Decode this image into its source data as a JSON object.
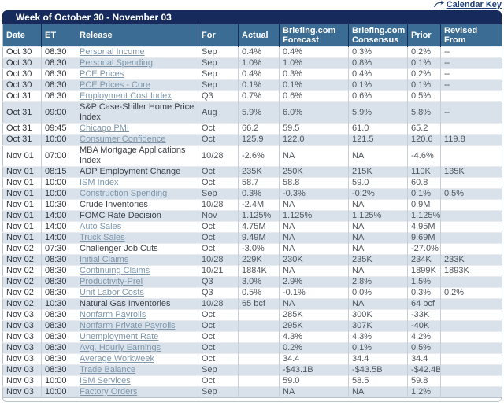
{
  "calendar_key": {
    "label": "Calendar Key",
    "icon": "curved-arrow-key-icon"
  },
  "title": "Week of October 30 - November 03",
  "colors": {
    "title_bar": "#172a5c",
    "header_bg": "#3b6c94",
    "alt_row": "#d9e2eb",
    "link": "#7d96ab",
    "border": "#b6c2cc"
  },
  "columns": [
    "Date",
    "ET",
    "Release",
    "For",
    "Actual",
    "Briefing.com Forecast",
    "Briefing.com Consensus",
    "Prior",
    "Revised From"
  ],
  "rows": [
    {
      "date": "Oct 30",
      "et": "08:30",
      "release": "Personal Income",
      "is_link": true,
      "for": "Sep",
      "actual": "0.4%",
      "forecast": "0.4%",
      "consensus": "0.3%",
      "prior": "0.2%",
      "revised": "--"
    },
    {
      "date": "Oct 30",
      "et": "08:30",
      "release": "Personal Spending",
      "is_link": true,
      "for": "Sep",
      "actual": "1.0%",
      "forecast": "1.0%",
      "consensus": "0.8%",
      "prior": "0.1%",
      "revised": "--"
    },
    {
      "date": "Oct 30",
      "et": "08:30",
      "release": "PCE Prices",
      "is_link": true,
      "for": "Sep",
      "actual": "0.4%",
      "forecast": "0.3%",
      "consensus": "0.4%",
      "prior": "0.2%",
      "revised": "--"
    },
    {
      "date": "Oct 30",
      "et": "08:30",
      "release": "PCE Prices - Core",
      "is_link": true,
      "for": "Sep",
      "actual": "0.1%",
      "forecast": "0.1%",
      "consensus": "0.1%",
      "prior": "0.1%",
      "revised": "--"
    },
    {
      "date": "Oct 31",
      "et": "08:30",
      "release": "Employment Cost Index",
      "is_link": true,
      "for": "Q3",
      "actual": "0.7%",
      "forecast": "0.6%",
      "consensus": "0.6%",
      "prior": "0.5%",
      "revised": ""
    },
    {
      "date": "Oct 31",
      "et": "09:00",
      "release": "S&P Case-Shiller Home Price Index",
      "is_link": false,
      "for": "Aug",
      "actual": "5.9%",
      "forecast": "6.0%",
      "consensus": "5.9%",
      "prior": "5.8%",
      "revised": "--"
    },
    {
      "date": "Oct 31",
      "et": "09:45",
      "release": "Chicago PMI",
      "is_link": true,
      "for": "Oct",
      "actual": "66.2",
      "forecast": "59.5",
      "consensus": "61.0",
      "prior": "65.2",
      "revised": ""
    },
    {
      "date": "Oct 31",
      "et": "10:00",
      "release": "Consumer Confidence",
      "is_link": true,
      "for": "Oct",
      "actual": "125.9",
      "forecast": "122.0",
      "consensus": "121.5",
      "prior": "120.6",
      "revised": "119.8"
    },
    {
      "date": "Nov 01",
      "et": "07:00",
      "release": "MBA Mortgage Applications Index",
      "is_link": false,
      "for": "10/28",
      "actual": "-2.6%",
      "forecast": "NA",
      "consensus": "NA",
      "prior": "-4.6%",
      "revised": ""
    },
    {
      "date": "Nov 01",
      "et": "08:15",
      "release": "ADP Employment Change",
      "is_link": false,
      "for": "Oct",
      "actual": "235K",
      "forecast": "250K",
      "consensus": "215K",
      "prior": "110K",
      "revised": "135K"
    },
    {
      "date": "Nov 01",
      "et": "10:00",
      "release": "ISM Index",
      "is_link": true,
      "for": "Oct",
      "actual": "58.7",
      "forecast": "58.8",
      "consensus": "59.0",
      "prior": "60.8",
      "revised": ""
    },
    {
      "date": "Nov 01",
      "et": "10:00",
      "release": "Construction Spending",
      "is_link": true,
      "for": "Sep",
      "actual": "0.3%",
      "forecast": "-0.3%",
      "consensus": "-0.2%",
      "prior": "0.1%",
      "revised": "0.5%"
    },
    {
      "date": "Nov 01",
      "et": "10:30",
      "release": "Crude Inventories",
      "is_link": false,
      "for": "10/28",
      "actual": "-2.4M",
      "forecast": "NA",
      "consensus": "NA",
      "prior": "0.9M",
      "revised": ""
    },
    {
      "date": "Nov 01",
      "et": "14:00",
      "release": "FOMC Rate Decision",
      "is_link": false,
      "for": "Nov",
      "actual": "1.125%",
      "forecast": "1.125%",
      "consensus": "1.125%",
      "prior": "1.125%",
      "revised": ""
    },
    {
      "date": "Nov 01",
      "et": "14:00",
      "release": "Auto Sales",
      "is_link": true,
      "for": "Oct",
      "actual": "4.75M",
      "forecast": "NA",
      "consensus": "NA",
      "prior": "4.95M",
      "revised": ""
    },
    {
      "date": "Nov 01",
      "et": "14:00",
      "release": "Truck Sales",
      "is_link": true,
      "for": "Oct",
      "actual": "9.49M",
      "forecast": "NA",
      "consensus": "NA",
      "prior": "9.69M",
      "revised": ""
    },
    {
      "date": "Nov 02",
      "et": "07:30",
      "release": "Challenger Job Cuts",
      "is_link": false,
      "for": "Oct",
      "actual": "-3.0%",
      "forecast": "NA",
      "consensus": "NA",
      "prior": "-27.0%",
      "revised": ""
    },
    {
      "date": "Nov 02",
      "et": "08:30",
      "release": "Initial Claims",
      "is_link": true,
      "for": "10/28",
      "actual": "229K",
      "forecast": "230K",
      "consensus": "235K",
      "prior": "234K",
      "revised": "233K"
    },
    {
      "date": "Nov 02",
      "et": "08:30",
      "release": "Continuing Claims",
      "is_link": true,
      "for": "10/21",
      "actual": "1884K",
      "forecast": "NA",
      "consensus": "NA",
      "prior": "1899K",
      "revised": "1893K"
    },
    {
      "date": "Nov 02",
      "et": "08:30",
      "release": "Productivity-Prel",
      "is_link": true,
      "for": "Q3",
      "actual": "3.0%",
      "forecast": "2.9%",
      "consensus": "2.8%",
      "prior": "1.5%",
      "revised": ""
    },
    {
      "date": "Nov 02",
      "et": "08:30",
      "release": "Unit Labor Costs",
      "is_link": true,
      "for": "Q3",
      "actual": "0.5%",
      "forecast": "-0.1%",
      "consensus": "0.0%",
      "prior": "0.3%",
      "revised": "0.2%"
    },
    {
      "date": "Nov 02",
      "et": "10:30",
      "release": "Natural Gas Inventories",
      "is_link": false,
      "for": "10/28",
      "actual": "65 bcf",
      "forecast": "NA",
      "consensus": "NA",
      "prior": "64 bcf",
      "revised": ""
    },
    {
      "date": "Nov 03",
      "et": "08:30",
      "release": "Nonfarm Payrolls",
      "is_link": true,
      "for": "Oct",
      "actual": "",
      "forecast": "285K",
      "consensus": "300K",
      "prior": "-33K",
      "revised": ""
    },
    {
      "date": "Nov 03",
      "et": "08:30",
      "release": "Nonfarm Private Payrolls",
      "is_link": true,
      "for": "Oct",
      "actual": "",
      "forecast": "295K",
      "consensus": "307K",
      "prior": "-40K",
      "revised": ""
    },
    {
      "date": "Nov 03",
      "et": "08:30",
      "release": "Unemployment Rate",
      "is_link": true,
      "for": "Oct",
      "actual": "",
      "forecast": "4.3%",
      "consensus": "4.3%",
      "prior": "4.2%",
      "revised": ""
    },
    {
      "date": "Nov 03",
      "et": "08:30",
      "release": "Avg. Hourly Earnings",
      "is_link": true,
      "for": "Oct",
      "actual": "",
      "forecast": "0.2%",
      "consensus": "0.1%",
      "prior": "0.5%",
      "revised": ""
    },
    {
      "date": "Nov 03",
      "et": "08:30",
      "release": "Average Workweek",
      "is_link": true,
      "for": "Oct",
      "actual": "",
      "forecast": "34.4",
      "consensus": "34.4",
      "prior": "34.4",
      "revised": ""
    },
    {
      "date": "Nov 03",
      "et": "08:30",
      "release": "Trade Balance",
      "is_link": true,
      "for": "Sep",
      "actual": "",
      "forecast": "-$43.1B",
      "consensus": "-$43.5B",
      "prior": "-$42.4B",
      "revised": ""
    },
    {
      "date": "Nov 03",
      "et": "10:00",
      "release": "ISM Services",
      "is_link": true,
      "for": "Oct",
      "actual": "",
      "forecast": "59.0",
      "consensus": "58.5",
      "prior": "59.8",
      "revised": ""
    },
    {
      "date": "Nov 03",
      "et": "10:00",
      "release": "Factory Orders",
      "is_link": true,
      "for": "Sep",
      "actual": "",
      "forecast": "NA",
      "consensus": "NA",
      "prior": "1.2%",
      "revised": ""
    }
  ]
}
